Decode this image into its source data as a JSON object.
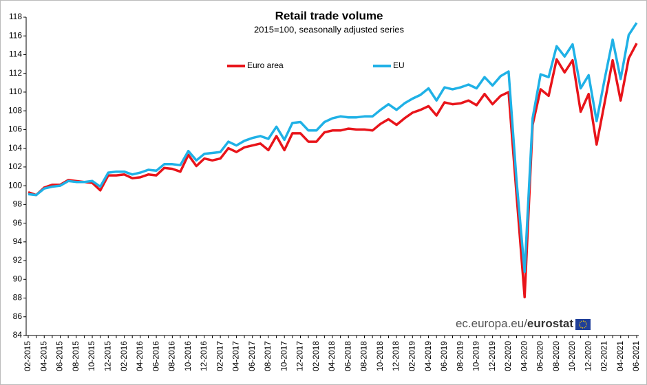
{
  "chart_data": {
    "type": "line",
    "title": "Retail trade volume",
    "subtitle": "2015=100,  seasonally adjusted series",
    "source": [
      "ec.europa.eu/",
      "eurostat"
    ],
    "categories": [
      "02-2015",
      null,
      "04-2015",
      null,
      "06-2015",
      null,
      "08-2015",
      null,
      "10-2015",
      null,
      "12-2015",
      null,
      "02-2016",
      null,
      "04-2016",
      null,
      "06-2016",
      null,
      "08-2016",
      null,
      "10-2016",
      null,
      "12-2016",
      null,
      "02-2017",
      null,
      "04-2017",
      null,
      "06-2017",
      null,
      "08-2017",
      null,
      "10-2017",
      null,
      "12-2017",
      null,
      "02-2018",
      null,
      "04-2018",
      null,
      "06-2018",
      null,
      "08-2018",
      null,
      "10-2018",
      null,
      "12-2018",
      null,
      "02-2019",
      null,
      "04-2019",
      null,
      "06-2019",
      null,
      "08-2019",
      null,
      "10-2019",
      null,
      "12-2019",
      null,
      "02-2020",
      null,
      "04-2020",
      null,
      "06-2020",
      null,
      "08-2020",
      null,
      "10-2020",
      null,
      "12-2020",
      null,
      "02-2021",
      null,
      "04-2021",
      null,
      "06-2021"
    ],
    "series": [
      {
        "name": "Euro area",
        "color": "#e8141a",
        "values": [
          99.3,
          99.0,
          99.8,
          100.1,
          100.1,
          100.6,
          100.5,
          100.4,
          100.3,
          99.5,
          101.1,
          101.1,
          101.2,
          100.8,
          100.9,
          101.2,
          101.1,
          101.9,
          101.8,
          101.5,
          103.3,
          102.1,
          102.9,
          102.7,
          102.9,
          104.0,
          103.6,
          104.1,
          104.3,
          104.5,
          103.8,
          105.3,
          103.8,
          105.6,
          105.6,
          104.7,
          104.7,
          105.7,
          105.9,
          105.9,
          106.1,
          106.0,
          106.0,
          105.9,
          106.6,
          107.1,
          106.5,
          107.2,
          107.8,
          108.1,
          108.5,
          107.5,
          108.9,
          108.7,
          108.8,
          109.1,
          108.6,
          109.8,
          108.7,
          109.6,
          110.0,
          99.0,
          88.1,
          106.5,
          110.3,
          109.6,
          113.5,
          112.1,
          113.4,
          107.9,
          109.8,
          104.4,
          108.9,
          113.4,
          109.1,
          113.6,
          115.2
        ]
      },
      {
        "name": "EU",
        "color": "#1fb1e6",
        "values": [
          99.1,
          99.0,
          99.7,
          99.9,
          100.0,
          100.5,
          100.4,
          100.4,
          100.5,
          99.9,
          101.4,
          101.5,
          101.5,
          101.2,
          101.4,
          101.7,
          101.6,
          102.3,
          102.3,
          102.2,
          103.7,
          102.7,
          103.4,
          103.5,
          103.6,
          104.7,
          104.3,
          104.8,
          105.1,
          105.3,
          105.0,
          106.3,
          104.9,
          106.7,
          106.8,
          105.9,
          105.9,
          106.8,
          107.2,
          107.4,
          107.3,
          107.3,
          107.4,
          107.4,
          108.1,
          108.7,
          108.1,
          108.8,
          109.3,
          109.7,
          110.4,
          109.1,
          110.5,
          110.3,
          110.5,
          110.8,
          110.4,
          111.6,
          110.7,
          111.7,
          112.2,
          100.5,
          90.8,
          107.2,
          111.9,
          111.6,
          114.9,
          113.8,
          115.1,
          110.4,
          111.8,
          106.9,
          111.4,
          115.6,
          111.4,
          116.1,
          117.4
        ]
      }
    ],
    "ylim": [
      84,
      118
    ],
    "yticks": [
      84,
      86,
      88,
      90,
      92,
      94,
      96,
      98,
      100,
      102,
      104,
      106,
      108,
      110,
      112,
      114,
      116,
      118
    ],
    "grid": false,
    "legend": "top"
  }
}
